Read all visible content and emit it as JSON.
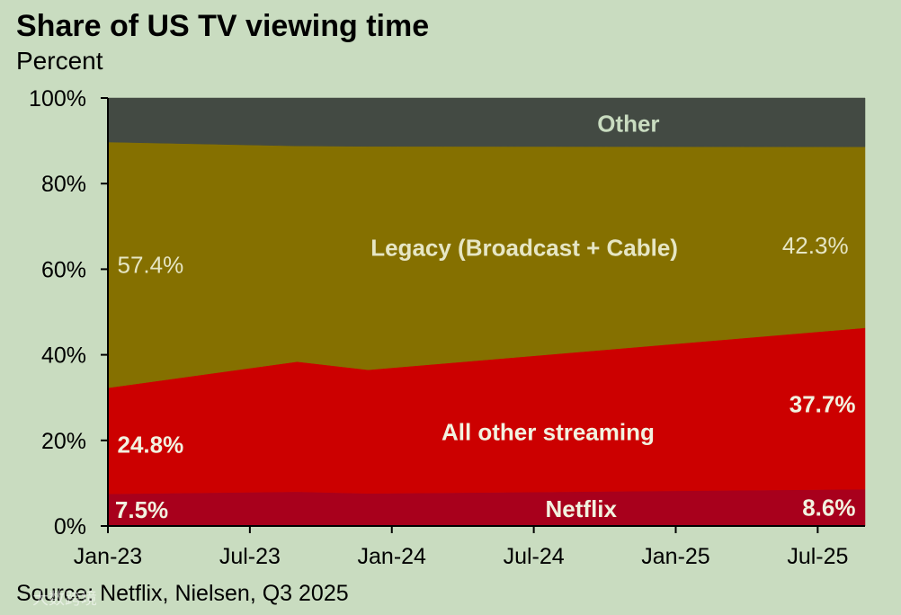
{
  "chart_data": {
    "type": "area",
    "stacked": true,
    "title": "Share of US TV viewing time",
    "subtitle": "Percent",
    "source": "Source: Netflix, Nielsen, Q3 2025",
    "ylim": [
      0,
      100
    ],
    "y_ticks": [
      "0%",
      "20%",
      "40%",
      "60%",
      "80%",
      "100%"
    ],
    "y_tick_values": [
      0,
      20,
      40,
      60,
      80,
      100
    ],
    "x_ticks": [
      "Jan-23",
      "Jul-23",
      "Jan-24",
      "Jul-24",
      "Jan-25",
      "Jul-25"
    ],
    "x_tick_values": [
      0,
      6,
      12,
      18,
      24,
      30
    ],
    "x_range": [
      0,
      32
    ],
    "x": [
      0,
      8,
      11,
      32
    ],
    "series": [
      {
        "name": "Netflix",
        "color": "#a8001c",
        "values": [
          7.5,
          8.0,
          7.6,
          8.6
        ]
      },
      {
        "name": "All other streaming",
        "color": "#cc0000",
        "values": [
          24.8,
          30.4,
          28.9,
          37.7
        ]
      },
      {
        "name": "Legacy (Broadcast + Cable)",
        "color": "#857000",
        "values": [
          57.4,
          50.4,
          52.2,
          42.3
        ]
      },
      {
        "name": "Other",
        "color": "#434a43",
        "values": [
          10.3,
          11.2,
          11.3,
          11.4
        ]
      }
    ],
    "annotations": [
      {
        "text": "7.5%",
        "series": "Netflix",
        "style": "bold",
        "color": "#f2f2e0",
        "x": 0.3,
        "y": 3.75,
        "anchor": "start"
      },
      {
        "text": "Netflix",
        "series": "Netflix",
        "style": "bold",
        "color": "#f2f2e0",
        "x": 20,
        "y": 4.0,
        "anchor": "middle"
      },
      {
        "text": "8.6%",
        "series": "Netflix",
        "style": "bold",
        "color": "#f2f2e0",
        "x": 31.6,
        "y": 4.3,
        "anchor": "end"
      },
      {
        "text": "24.8%",
        "series": "All other streaming",
        "style": "bold",
        "color": "#f2f2e0",
        "x": 0.4,
        "y": 19.0,
        "anchor": "start"
      },
      {
        "text": "All other streaming",
        "series": "All other streaming",
        "style": "bold",
        "color": "#f2f2e0",
        "x": 18.6,
        "y": 22.0,
        "anchor": "middle"
      },
      {
        "text": "37.7%",
        "series": "All other streaming",
        "style": "bold",
        "color": "#f2f2e0",
        "x": 31.6,
        "y": 28.5,
        "anchor": "end"
      },
      {
        "text": "57.4%",
        "series": "Legacy (Broadcast + Cable)",
        "style": "plain",
        "color": "#e6e6c4",
        "x": 0.4,
        "y": 61.0,
        "anchor": "start"
      },
      {
        "text": "Legacy (Broadcast + Cable)",
        "series": "Legacy (Broadcast + Cable)",
        "style": "bold",
        "color": "#e6e6c4",
        "x": 17.6,
        "y": 65.0,
        "anchor": "middle"
      },
      {
        "text": "42.3%",
        "series": "Legacy (Broadcast + Cable)",
        "style": "plain",
        "color": "#e6e6c4",
        "x": 31.3,
        "y": 65.5,
        "anchor": "end"
      },
      {
        "text": "Other",
        "series": "Other",
        "style": "bold",
        "color": "#c9dcc0",
        "x": 22.0,
        "y": 94.0,
        "anchor": "middle"
      }
    ]
  },
  "watermark": "大数跨境"
}
